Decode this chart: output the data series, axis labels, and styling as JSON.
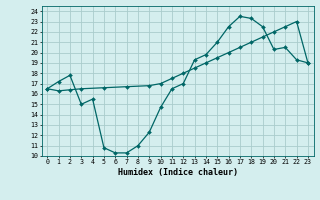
{
  "xlabel": "Humidex (Indice chaleur)",
  "background_color": "#d4eeee",
  "grid_color": "#aacccc",
  "line_color": "#006666",
  "xlim": [
    -0.5,
    23.5
  ],
  "ylim": [
    10,
    24.5
  ],
  "yticks": [
    10,
    11,
    12,
    13,
    14,
    15,
    16,
    17,
    18,
    19,
    20,
    21,
    22,
    23,
    24
  ],
  "xticks": [
    0,
    1,
    2,
    3,
    4,
    5,
    6,
    7,
    8,
    9,
    10,
    11,
    12,
    13,
    14,
    15,
    16,
    17,
    18,
    19,
    20,
    21,
    22,
    23
  ],
  "line1_x": [
    0,
    1,
    2,
    3,
    4,
    5,
    6,
    7,
    8,
    9,
    10,
    11,
    12,
    13,
    14,
    15,
    16,
    17,
    18,
    19,
    20,
    21,
    22,
    23
  ],
  "line1_y": [
    16.5,
    17.2,
    17.8,
    15.0,
    15.5,
    10.8,
    10.3,
    10.3,
    11.0,
    12.3,
    14.7,
    16.5,
    17.0,
    19.3,
    19.8,
    21.0,
    22.5,
    23.5,
    23.3,
    22.5,
    20.3,
    20.5,
    19.3,
    19.0
  ],
  "line2_x": [
    0,
    1,
    2,
    3,
    5,
    7,
    9,
    10,
    11,
    12,
    13,
    14,
    15,
    16,
    17,
    18,
    19,
    20,
    21,
    22,
    23
  ],
  "line2_y": [
    16.5,
    16.3,
    16.4,
    16.5,
    16.6,
    16.7,
    16.8,
    17.0,
    17.5,
    18.0,
    18.5,
    19.0,
    19.5,
    20.0,
    20.5,
    21.0,
    21.5,
    22.0,
    22.5,
    23.0,
    19.0
  ]
}
